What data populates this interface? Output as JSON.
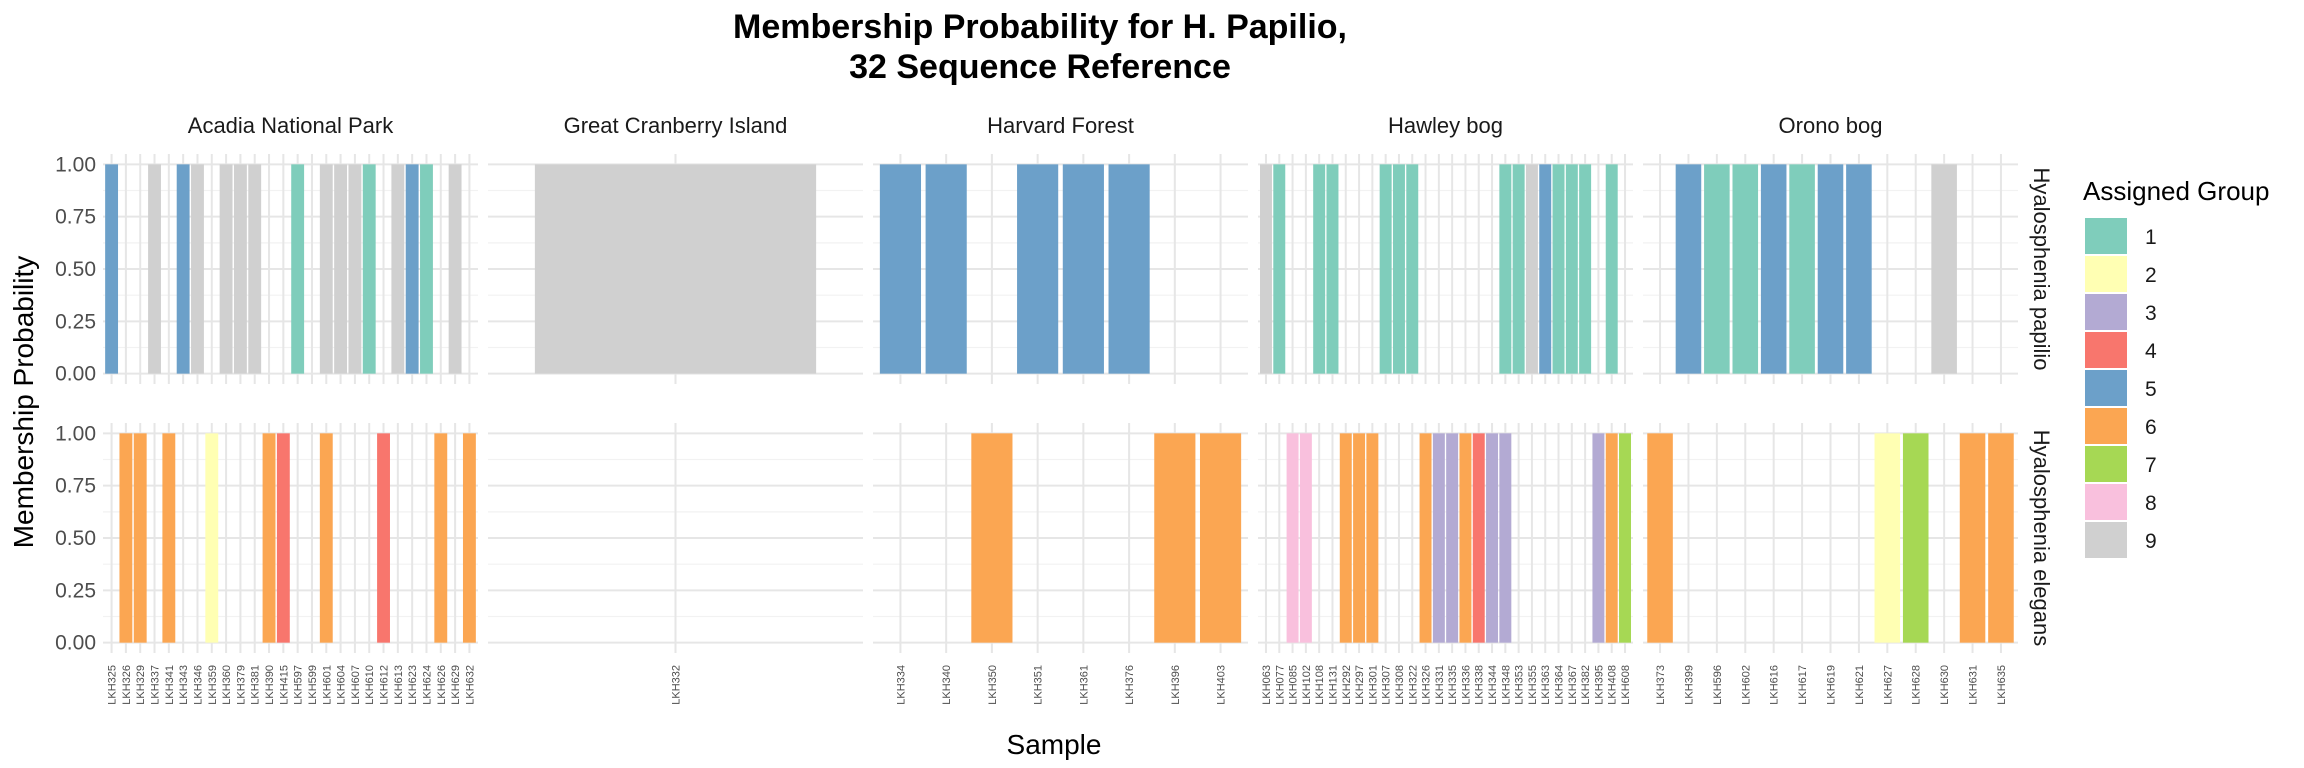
{
  "chart_data": {
    "type": "bar",
    "title_lines": [
      "Membership Probability for H. Papilio,",
      "32 Sequence Reference"
    ],
    "xlabel": "Sample",
    "ylabel": "Membership Probability",
    "ylim": [
      0,
      1
    ],
    "yticks": [
      "0.00",
      "0.25",
      "0.50",
      "0.75",
      "1.00"
    ],
    "legend": {
      "title": "Assigned Group",
      "position": "right",
      "entries": [
        {
          "label": "1",
          "color": "#7fcdbb"
        },
        {
          "label": "2",
          "color": "#ffffb3"
        },
        {
          "label": "3",
          "color": "#b3aad3"
        },
        {
          "label": "4",
          "color": "#f8766d"
        },
        {
          "label": "5",
          "color": "#6ca0c9"
        },
        {
          "label": "6",
          "color": "#fba652"
        },
        {
          "label": "7",
          "color": "#a6d854"
        },
        {
          "label": "8",
          "color": "#f9c0dd"
        },
        {
          "label": "9",
          "color": "#d0d0d0"
        }
      ]
    },
    "row_facets": [
      "Hyalosphenia papilio",
      "Hyalosphenia elegans"
    ],
    "col_facets": [
      {
        "name": "Acadia National Park",
        "samples": [
          "LKH325",
          "LKH326",
          "LKH329",
          "LKH337",
          "LKH341",
          "LKH343",
          "LKH346",
          "LKH359",
          "LKH360",
          "LKH379",
          "LKH381",
          "LKH390",
          "LKH415",
          "LKH597",
          "LKH599",
          "LKH601",
          "LKH604",
          "LKH607",
          "LKH610",
          "LKH612",
          "LKH613",
          "LKH623",
          "LKH624",
          "LKH626",
          "LKH629",
          "LKH632"
        ],
        "papilio": [
          "5",
          "",
          "",
          "9",
          "",
          "5",
          "9",
          "",
          "9",
          "9",
          "9",
          "",
          "",
          "1",
          "",
          "9",
          "9",
          "9",
          "1",
          "",
          "9",
          "5",
          "1",
          "",
          "9",
          ""
        ],
        "elegans": [
          "",
          "6",
          "6",
          "",
          "6",
          "",
          "",
          "2",
          "",
          "",
          "",
          "6",
          "4",
          "",
          "",
          "6",
          "",
          "",
          "",
          "4",
          "",
          "",
          "",
          "6",
          "",
          "6"
        ]
      },
      {
        "name": "Great Cranberry Island",
        "samples": [
          "LKH332"
        ],
        "papilio": [
          "9"
        ],
        "elegans": [
          ""
        ]
      },
      {
        "name": "Harvard Forest",
        "samples": [
          "LKH334",
          "LKH340",
          "LKH350",
          "LKH351",
          "LKH361",
          "LKH376",
          "LKH396",
          "LKH403"
        ],
        "papilio": [
          "5",
          "5",
          "",
          "5",
          "5",
          "5",
          "",
          ""
        ],
        "elegans": [
          "",
          "",
          "6",
          "",
          "",
          "",
          "6",
          "6"
        ]
      },
      {
        "name": "Hawley bog",
        "samples": [
          "LKH063",
          "LKH077",
          "LKH085",
          "LKH102",
          "LKH108",
          "LKH131",
          "LKH292",
          "LKH297",
          "LKH301",
          "LKH307",
          "LKH308",
          "LKH322",
          "LKH326",
          "LKH331",
          "LKH335",
          "LKH336",
          "LKH338",
          "LKH344",
          "LKH348",
          "LKH353",
          "LKH355",
          "LKH363",
          "LKH364",
          "LKH367",
          "LKH382",
          "LKH395",
          "LKH408",
          "LKH608"
        ],
        "papilio": [
          "9",
          "1",
          "",
          "",
          "1",
          "1",
          "",
          "",
          "",
          "1",
          "1",
          "1",
          "",
          "",
          "",
          "",
          "",
          "",
          "1",
          "1",
          "9",
          "5",
          "1",
          "1",
          "1",
          "",
          "1",
          ""
        ],
        "elegans": [
          "",
          "",
          "8",
          "8",
          "",
          "",
          "6",
          "6",
          "6",
          "",
          "",
          "",
          "6",
          "3",
          "3",
          "6",
          "4",
          "3",
          "3",
          "",
          "",
          "",
          "",
          "",
          "",
          "3",
          "6",
          "7"
        ]
      },
      {
        "name": "Orono bog",
        "samples": [
          "LKH373",
          "LKH399",
          "LKH596",
          "LKH602",
          "LKH616",
          "LKH617",
          "LKH619",
          "LKH621",
          "LKH627",
          "LKH628",
          "LKH630",
          "LKH631",
          "LKH635"
        ],
        "papilio": [
          "",
          "5",
          "1",
          "1",
          "5",
          "1",
          "5",
          "5",
          "",
          "",
          "9",
          "",
          ""
        ],
        "elegans": [
          "6",
          "",
          "",
          "",
          "",
          "",
          "",
          "",
          "2",
          "7",
          "",
          "6",
          "6"
        ]
      }
    ]
  }
}
